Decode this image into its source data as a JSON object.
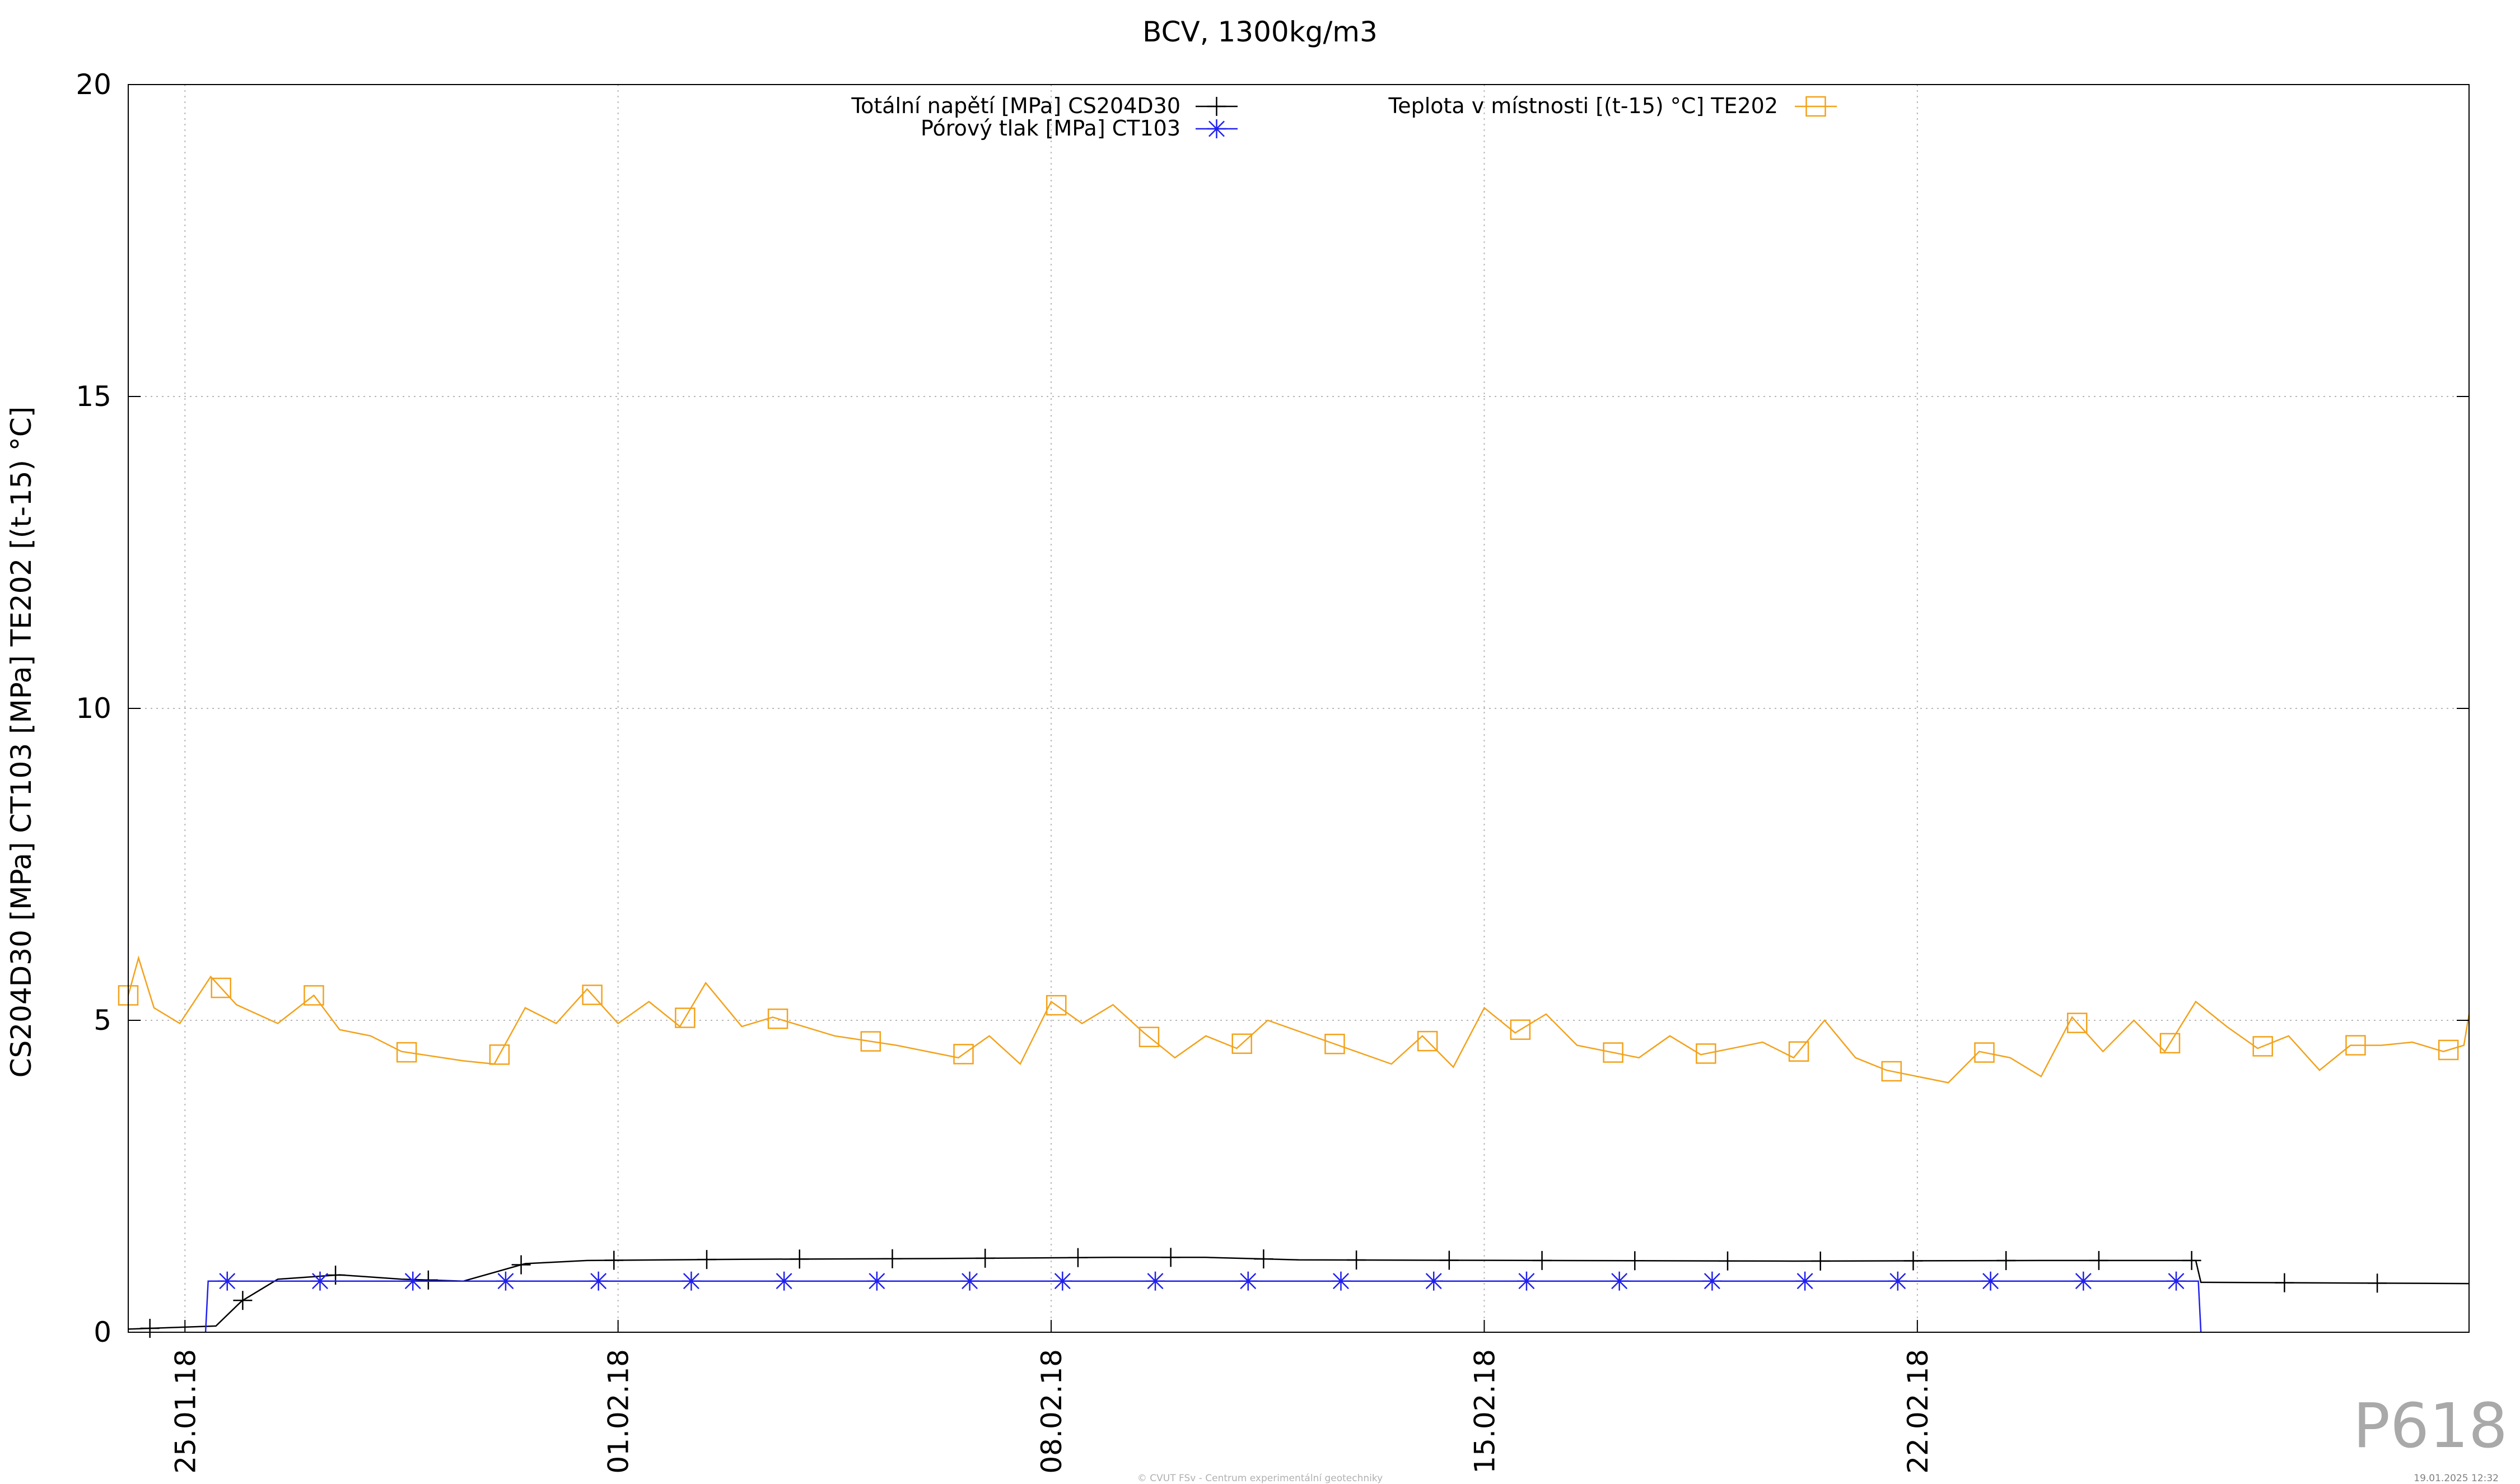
{
  "chart_data": {
    "type": "line",
    "title": "BCV, 1300kg/m3",
    "ylabel": "CS204D30 [MPa] CT103 [MPa] TE202 [(t-15) °C]",
    "xlabel": "",
    "ylim": [
      0,
      20
    ],
    "xlim": [
      "2018-01-24 02:00",
      "2018-03-02 22:00"
    ],
    "x_axis": "date",
    "grid": true,
    "legend_placement": "top-center",
    "y_ticks": [
      "0",
      "5",
      "10",
      "15",
      "20"
    ],
    "x_ticks": [
      {
        "date": "2018-01-25",
        "label": "25.01.18"
      },
      {
        "date": "2018-02-01",
        "label": "01.02.18"
      },
      {
        "date": "2018-02-08",
        "label": "08.02.18"
      },
      {
        "date": "2018-02-15",
        "label": "15.02.18"
      },
      {
        "date": "2018-02-22",
        "label": "22.02.18"
      }
    ],
    "series": [
      {
        "name": "Totální napětí [MPa] CS204D30",
        "color": "#000000",
        "marker": "plus",
        "points": [
          [
            "2018-01-24 02:00",
            0.05
          ],
          [
            "2018-01-25 12:00",
            0.1
          ],
          [
            "2018-01-25 22:00",
            0.5
          ],
          [
            "2018-01-26 12:00",
            0.85
          ],
          [
            "2018-01-27 12:00",
            0.92
          ],
          [
            "2018-01-28 12:00",
            0.85
          ],
          [
            "2018-01-29 12:00",
            0.82
          ],
          [
            "2018-01-30 12:00",
            1.1
          ],
          [
            "2018-01-31 12:00",
            1.15
          ],
          [
            "2018-02-03 00:00",
            1.17
          ],
          [
            "2018-02-06 00:00",
            1.18
          ],
          [
            "2018-02-09 00:00",
            1.2
          ],
          [
            "2018-02-10 12:00",
            1.2
          ],
          [
            "2018-02-12 00:00",
            1.16
          ],
          [
            "2018-02-16 00:00",
            1.15
          ],
          [
            "2018-02-20 00:00",
            1.14
          ],
          [
            "2018-02-24 00:00",
            1.15
          ],
          [
            "2018-02-26 12:00",
            1.15
          ],
          [
            "2018-02-26 14:00",
            0.8
          ],
          [
            "2018-03-02 22:00",
            0.78
          ]
        ]
      },
      {
        "name": "Pórový tlak [MPa] CT103",
        "color": "#2020ee",
        "marker": "star",
        "points": [
          [
            "2018-01-25 08:00",
            0.0
          ],
          [
            "2018-01-25 09:00",
            0.82
          ],
          [
            "2018-02-26 13:00",
            0.82
          ],
          [
            "2018-02-26 14:00",
            0.0
          ]
        ]
      },
      {
        "name": "Teplota v místnosti [(t-15) °C] TE202",
        "color": "#f3a21b",
        "marker": "square",
        "points": [
          [
            "2018-01-24 02:00",
            5.4
          ],
          [
            "2018-01-24 06:00",
            6.0
          ],
          [
            "2018-01-24 12:00",
            5.2
          ],
          [
            "2018-01-24 22:00",
            4.95
          ],
          [
            "2018-01-25 10:00",
            5.7
          ],
          [
            "2018-01-25 20:00",
            5.25
          ],
          [
            "2018-01-26 12:00",
            4.95
          ],
          [
            "2018-01-27 02:00",
            5.4
          ],
          [
            "2018-01-27 12:00",
            4.85
          ],
          [
            "2018-01-28 00:00",
            4.75
          ],
          [
            "2018-01-28 12:00",
            4.5
          ],
          [
            "2018-01-29 12:00",
            4.35
          ],
          [
            "2018-01-30 00:00",
            4.3
          ],
          [
            "2018-01-30 12:00",
            5.2
          ],
          [
            "2018-01-31 00:00",
            4.95
          ],
          [
            "2018-01-31 12:00",
            5.5
          ],
          [
            "2018-02-01 00:00",
            4.95
          ],
          [
            "2018-02-01 12:00",
            5.3
          ],
          [
            "2018-02-02 00:00",
            4.9
          ],
          [
            "2018-02-02 10:00",
            5.6
          ],
          [
            "2018-02-03 00:00",
            4.9
          ],
          [
            "2018-02-03 12:00",
            5.05
          ],
          [
            "2018-02-04 12:00",
            4.75
          ],
          [
            "2018-02-05 12:00",
            4.6
          ],
          [
            "2018-02-06 12:00",
            4.4
          ],
          [
            "2018-02-07 00:00",
            4.75
          ],
          [
            "2018-02-07 12:00",
            4.3
          ],
          [
            "2018-02-08 00:00",
            5.3
          ],
          [
            "2018-02-08 12:00",
            4.95
          ],
          [
            "2018-02-09 00:00",
            5.25
          ],
          [
            "2018-02-09 12:00",
            4.8
          ],
          [
            "2018-02-10 00:00",
            4.4
          ],
          [
            "2018-02-10 12:00",
            4.75
          ],
          [
            "2018-02-11 00:00",
            4.55
          ],
          [
            "2018-02-11 12:00",
            5.0
          ],
          [
            "2018-02-12 12:00",
            4.65
          ],
          [
            "2018-02-13 12:00",
            4.3
          ],
          [
            "2018-02-14 00:00",
            4.75
          ],
          [
            "2018-02-14 12:00",
            4.25
          ],
          [
            "2018-02-15 00:00",
            5.2
          ],
          [
            "2018-02-15 12:00",
            4.8
          ],
          [
            "2018-02-16 00:00",
            5.1
          ],
          [
            "2018-02-16 12:00",
            4.6
          ],
          [
            "2018-02-17 12:00",
            4.4
          ],
          [
            "2018-02-18 00:00",
            4.75
          ],
          [
            "2018-02-18 12:00",
            4.45
          ],
          [
            "2018-02-19 12:00",
            4.65
          ],
          [
            "2018-02-20 00:00",
            4.4
          ],
          [
            "2018-02-20 12:00",
            5.0
          ],
          [
            "2018-02-21 00:00",
            4.4
          ],
          [
            "2018-02-21 12:00",
            4.2
          ],
          [
            "2018-02-22 12:00",
            4.0
          ],
          [
            "2018-02-23 00:00",
            4.5
          ],
          [
            "2018-02-23 12:00",
            4.4
          ],
          [
            "2018-02-24 00:00",
            4.1
          ],
          [
            "2018-02-24 12:00",
            5.05
          ],
          [
            "2018-02-25 00:00",
            4.5
          ],
          [
            "2018-02-25 12:00",
            5.0
          ],
          [
            "2018-02-26 00:00",
            4.5
          ],
          [
            "2018-02-26 12:00",
            5.3
          ],
          [
            "2018-02-27 00:00",
            4.9
          ],
          [
            "2018-02-27 12:00",
            4.55
          ],
          [
            "2018-02-28 00:00",
            4.75
          ],
          [
            "2018-02-28 12:00",
            4.2
          ],
          [
            "2018-03-01 00:00",
            4.6
          ],
          [
            "2018-03-01 12:00",
            4.6
          ],
          [
            "2018-03-02 00:00",
            4.65
          ],
          [
            "2018-03-02 12:00",
            4.5
          ],
          [
            "2018-03-02 20:00",
            4.6
          ],
          [
            "2018-03-02 22:00",
            5.1
          ]
        ]
      }
    ]
  },
  "watermark": "P618",
  "footer": {
    "credit": "© CVUT FSv - Centrum experimentální geotechniky",
    "timestamp": "19.01.2025 12:32"
  }
}
